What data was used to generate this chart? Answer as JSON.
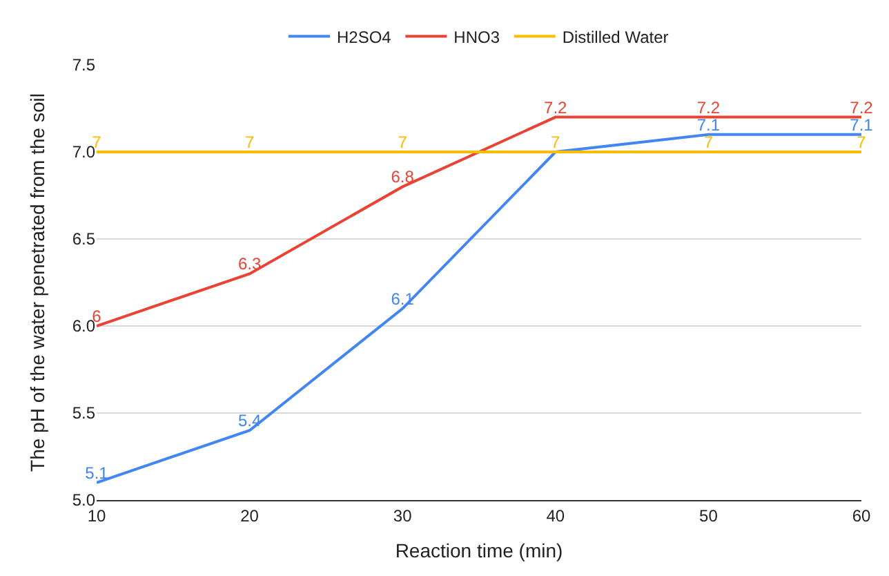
{
  "chart_data": {
    "type": "line",
    "xlabel": "Reaction time (min)",
    "ylabel": "The pH of the water penetrated from the soil",
    "x": [
      10,
      20,
      30,
      40,
      50,
      60
    ],
    "series": [
      {
        "name": "H2SO4",
        "color": "#4285f4",
        "values": [
          5.1,
          5.4,
          6.1,
          7,
          7.1,
          7.1
        ],
        "value_labels": [
          "5.1",
          "5.4",
          "6.1",
          null,
          "7.1",
          "7.1"
        ]
      },
      {
        "name": "HNO3",
        "color": "#ea4335",
        "values": [
          6,
          6.3,
          6.8,
          7.2,
          7.2,
          7.2
        ],
        "value_labels": [
          "6",
          "6.3",
          "6.8",
          "7.2",
          "7.2",
          "7.2"
        ]
      },
      {
        "name": "Distilled Water",
        "color": "#fbbc04",
        "values": [
          7,
          7,
          7,
          7,
          7,
          7
        ],
        "value_labels": [
          "7",
          "7",
          "7",
          "7",
          "7",
          "7"
        ]
      }
    ],
    "xlim": [
      10,
      60
    ],
    "xticks": [
      10,
      20,
      30,
      40,
      50,
      60
    ],
    "ylim": [
      5,
      7.5
    ],
    "yticks": [
      {
        "value": 5,
        "label": "5.0"
      },
      {
        "value": 5.5,
        "label": "5.5"
      },
      {
        "value": 6,
        "label": "6.0"
      },
      {
        "value": 6.5,
        "label": "6.5"
      },
      {
        "value": 7,
        "label": "7.0"
      },
      {
        "value": 7.5,
        "label": "7.5"
      }
    ],
    "grid": "y",
    "legend": "top",
    "marker": "none",
    "line_style": "solid"
  }
}
